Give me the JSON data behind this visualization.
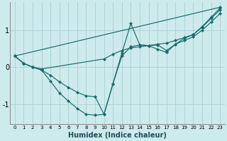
{
  "xlabel": "Humidex (Indice chaleur)",
  "background_color": "#cdeaed",
  "grid_color": "#a8d0d4",
  "line_color": "#1a6b6b",
  "xlim": [
    -0.5,
    23.5
  ],
  "ylim": [
    -1.55,
    1.75
  ],
  "yticks": [
    -1,
    0,
    1
  ],
  "xticks": [
    0,
    1,
    2,
    3,
    4,
    5,
    6,
    7,
    8,
    9,
    10,
    11,
    12,
    13,
    14,
    15,
    16,
    17,
    18,
    19,
    20,
    21,
    22,
    23
  ],
  "series": [
    {
      "x": [
        0,
        1,
        2,
        3,
        10,
        11,
        12,
        13,
        14,
        15,
        16,
        17,
        18,
        19,
        20,
        21,
        22,
        23
      ],
      "y": [
        0.3,
        0.1,
        0.0,
        -0.05,
        0.22,
        0.35,
        0.45,
        0.52,
        0.55,
        0.58,
        0.62,
        0.65,
        0.72,
        0.8,
        0.88,
        1.1,
        1.35,
        1.6
      ]
    },
    {
      "x": [
        0,
        1,
        2,
        3,
        4,
        5,
        6,
        7,
        8,
        9,
        10,
        11,
        12,
        13,
        14,
        15,
        16,
        17,
        18,
        19,
        20,
        21,
        22,
        23
      ],
      "y": [
        0.3,
        0.1,
        0.0,
        -0.08,
        -0.38,
        -0.7,
        -0.92,
        -1.12,
        -1.28,
        -1.3,
        -1.28,
        -0.45,
        0.38,
        1.18,
        0.6,
        0.58,
        0.6,
        0.45,
        0.62,
        0.78,
        0.88,
        1.08,
        1.32,
        1.55
      ]
    },
    {
      "x": [
        0,
        1,
        2,
        3,
        4,
        5,
        6,
        7,
        8,
        9,
        10,
        11,
        12,
        13,
        14,
        15,
        16,
        17,
        18,
        19,
        20,
        21,
        22,
        23
      ],
      "y": [
        0.3,
        0.1,
        0.0,
        -0.08,
        -0.22,
        -0.4,
        -0.55,
        -0.68,
        -0.78,
        -0.8,
        -1.28,
        -0.45,
        0.3,
        0.55,
        0.6,
        0.58,
        0.48,
        0.4,
        0.62,
        0.72,
        0.82,
        1.0,
        1.22,
        1.45
      ]
    },
    {
      "x": [
        0,
        23
      ],
      "y": [
        0.3,
        1.62
      ]
    }
  ]
}
